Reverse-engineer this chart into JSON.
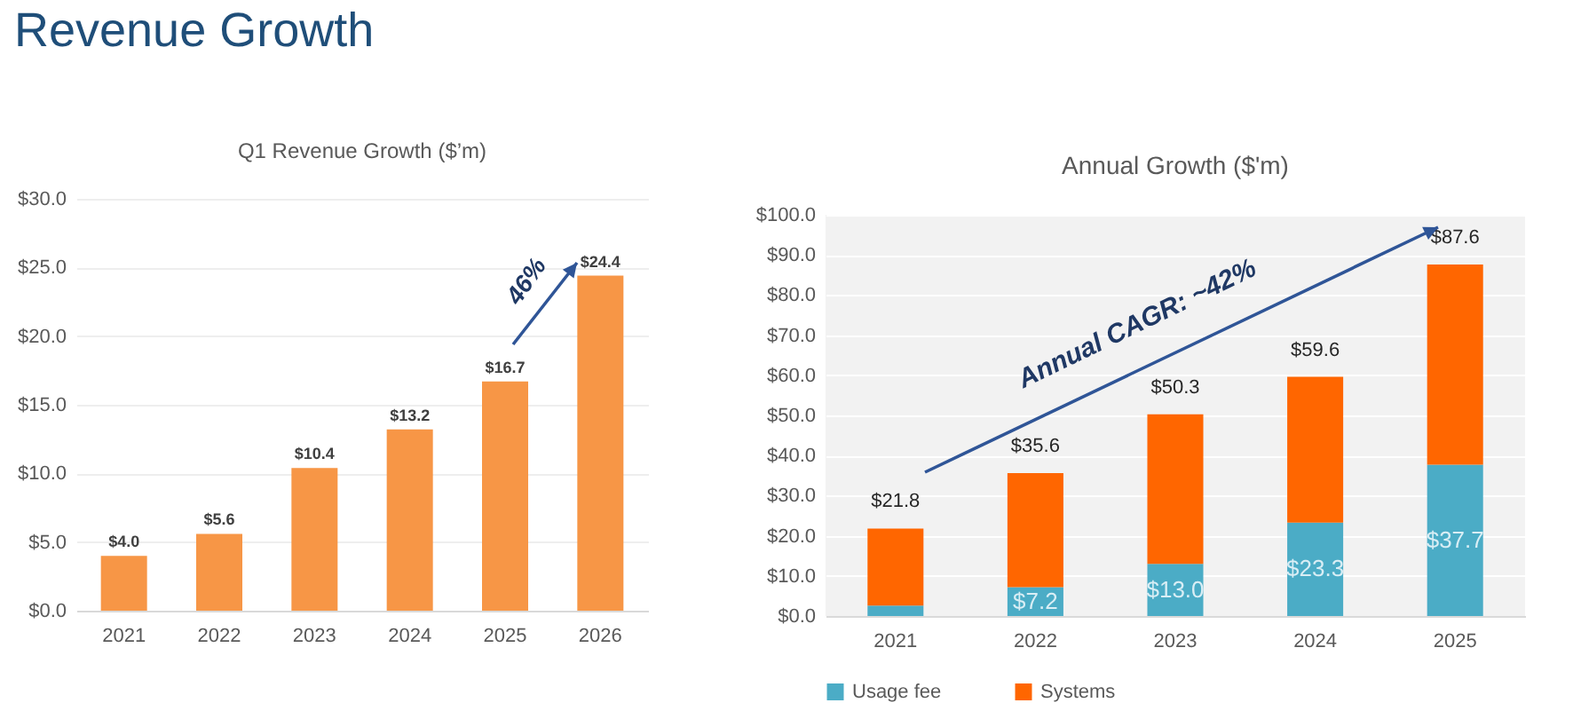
{
  "chart_data": [
    {
      "type": "bar",
      "title": "Revenue Growth",
      "subtitle": "Q1 Revenue Growth ($’m)",
      "categories": [
        "2021",
        "2022",
        "2023",
        "2024",
        "2025",
        "2026"
      ],
      "values": [
        4.0,
        5.6,
        10.4,
        13.2,
        16.7,
        24.4
      ],
      "value_labels": [
        "$4.0",
        "$5.6",
        "$10.4",
        "$13.2",
        "$16.7",
        "$24.4"
      ],
      "color": "#f79646",
      "ylim": [
        0,
        30
      ],
      "yticks": [
        {
          "value": 0,
          "label": "$0.0"
        },
        {
          "value": 5,
          "label": "$5.0"
        },
        {
          "value": 10,
          "label": "$10.0"
        },
        {
          "value": 15,
          "label": "$15.0"
        },
        {
          "value": 20,
          "label": "$20.0"
        },
        {
          "value": 25,
          "label": "$25.0"
        },
        {
          "value": 30,
          "label": "$30.0"
        }
      ],
      "grid": "y",
      "annotations": [
        "46%"
      ]
    },
    {
      "type": "bar",
      "title": "Annual Growth ($'m)",
      "categories": [
        "2021",
        "2022",
        "2023",
        "2024",
        "2025"
      ],
      "stacked": true,
      "series": [
        {
          "name": "Usage fee",
          "color": "#4bacc6",
          "values": [
            2.6,
            7.2,
            13.0,
            23.3,
            37.7
          ],
          "value_labels": [
            null,
            "$7.2",
            "$13.0",
            "$23.3",
            "$37.7"
          ]
        },
        {
          "name": "Systems",
          "color": "#ff6600",
          "values": [
            19.2,
            28.4,
            37.3,
            36.3,
            49.9
          ]
        }
      ],
      "totals": [
        "$21.8",
        "$35.6",
        "$50.3",
        "$59.6",
        "$87.6"
      ],
      "ylim": [
        0,
        100
      ],
      "yticks": [
        {
          "value": 0,
          "label": "$0.0"
        },
        {
          "value": 10,
          "label": "$10.0"
        },
        {
          "value": 20,
          "label": "$20.0"
        },
        {
          "value": 30,
          "label": "$30.0"
        },
        {
          "value": 40,
          "label": "$40.0"
        },
        {
          "value": 50,
          "label": "$50.0"
        },
        {
          "value": 60,
          "label": "$60.0"
        },
        {
          "value": 70,
          "label": "$70.0"
        },
        {
          "value": 80,
          "label": "$80.0"
        },
        {
          "value": 90,
          "label": "$90.0"
        },
        {
          "value": 100,
          "label": "$100.0"
        }
      ],
      "grid": "y",
      "legend": "bottom",
      "annotations": [
        "Annual CAGR: ~42%"
      ]
    }
  ]
}
